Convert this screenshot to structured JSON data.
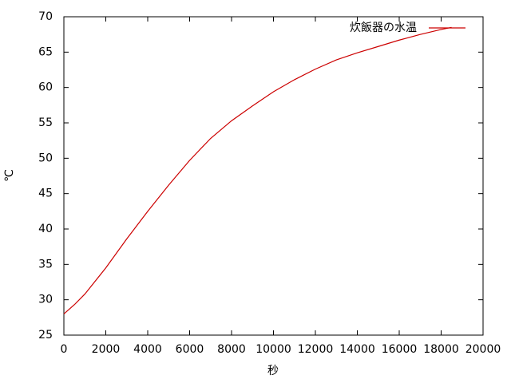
{
  "chart_data": {
    "type": "line",
    "x_label": "秒",
    "y_label": "℃",
    "x": [
      0,
      500,
      1000,
      2000,
      3000,
      4000,
      5000,
      6000,
      7000,
      8000,
      9000,
      10000,
      11000,
      12000,
      13000,
      14000,
      15000,
      16000,
      17000,
      18000,
      18500
    ],
    "series": [
      {
        "name": "炊飯器の水温",
        "color": "#cc0000",
        "values": [
          28,
          29.3,
          30.8,
          34.5,
          38.6,
          42.5,
          46.2,
          49.7,
          52.8,
          55.3,
          57.4,
          59.4,
          61.1,
          62.6,
          63.9,
          64.9,
          65.8,
          66.7,
          67.5,
          68.2,
          68.5
        ]
      }
    ],
    "xlim": [
      0,
      20000
    ],
    "xticks": [
      0,
      2000,
      4000,
      6000,
      8000,
      10000,
      12000,
      14000,
      16000,
      18000,
      20000
    ],
    "ylim": [
      25,
      70
    ],
    "yticks": [
      25,
      30,
      35,
      40,
      45,
      50,
      55,
      60,
      65,
      70
    ],
    "grid": false,
    "legend": "top-right"
  }
}
